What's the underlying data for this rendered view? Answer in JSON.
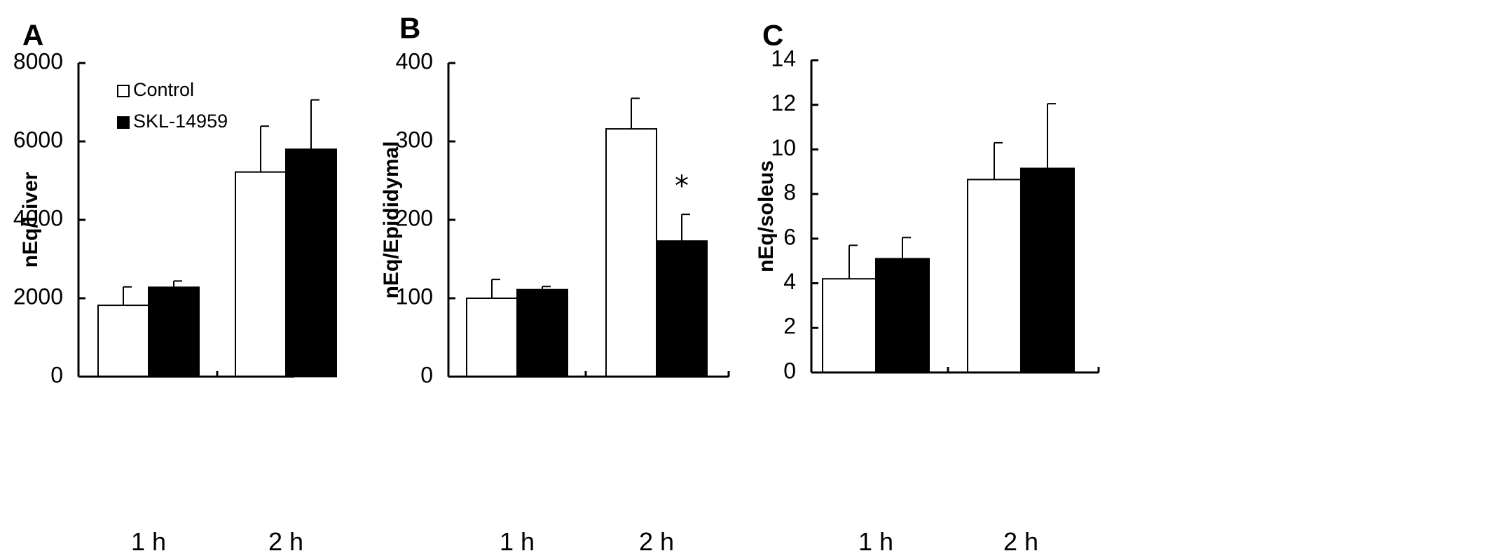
{
  "chart_data": [
    {
      "panel": "A",
      "type": "bar",
      "categories": [
        "1 h",
        "2 h"
      ],
      "ylabel": "nEq/Liver",
      "ylim": [
        0,
        8000
      ],
      "yticks": [
        "0",
        "2000",
        "4000",
        "6000",
        "8000"
      ],
      "legend": {
        "placement": "top-left",
        "entries": [
          "Control",
          "SKL-14959"
        ]
      },
      "series": [
        {
          "name": "Control",
          "color": "#ffffff",
          "values": [
            1820,
            5220
          ],
          "errors": [
            470,
            1170
          ]
        },
        {
          "name": "SKL-14959",
          "color": "#000000",
          "values": [
            2280,
            5800
          ],
          "errors": [
            160,
            1260
          ]
        }
      ],
      "annotations": []
    },
    {
      "panel": "B",
      "type": "bar",
      "categories": [
        "1 h",
        "2 h"
      ],
      "ylabel": "nEq/Epididymal",
      "ylim": [
        0,
        400
      ],
      "yticks": [
        "0",
        "100",
        "200",
        "300",
        "400"
      ],
      "series": [
        {
          "name": "Control",
          "color": "#ffffff",
          "values": [
            100,
            316
          ],
          "errors": [
            24,
            39
          ]
        },
        {
          "name": "SKL-14959",
          "color": "#000000",
          "values": [
            111,
            173
          ],
          "errors": [
            4,
            34
          ]
        }
      ],
      "annotations": [
        {
          "text": "*",
          "category": "2 h",
          "series": "SKL-14959"
        }
      ]
    },
    {
      "panel": "C",
      "type": "bar",
      "categories": [
        "1 h",
        "2 h"
      ],
      "ylabel": "nEq/soleus",
      "ylim": [
        0,
        14
      ],
      "yticks": [
        "0",
        "2",
        "4",
        "6",
        "8",
        "10",
        "12",
        "14"
      ],
      "series": [
        {
          "name": "Control",
          "color": "#ffffff",
          "values": [
            4.2,
            8.65
          ],
          "errors": [
            1.5,
            1.65
          ]
        },
        {
          "name": "SKL-14959",
          "color": "#000000",
          "values": [
            5.1,
            9.15
          ],
          "errors": [
            0.95,
            2.9
          ]
        }
      ],
      "annotations": []
    }
  ]
}
